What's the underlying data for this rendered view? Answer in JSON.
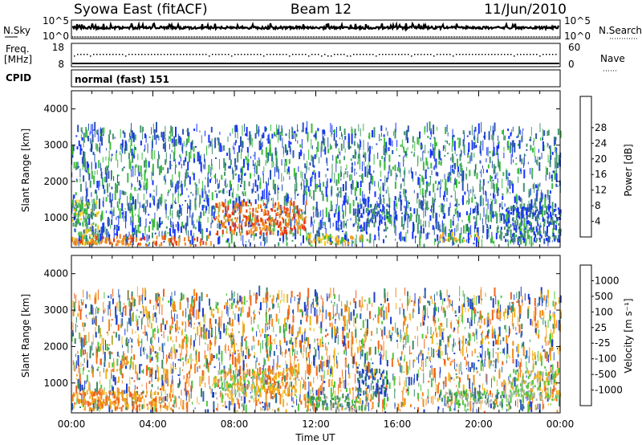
{
  "header": {
    "station": "Syowa East (fitACF)",
    "beam": "Beam 12",
    "date": "11/Jun/2010"
  },
  "noise_panel": {
    "left_label": "N.Sky",
    "right_label": "N.Search",
    "left_ticks": [
      "10^5",
      "10^0"
    ],
    "right_ticks": [
      "10^5",
      "10^0"
    ]
  },
  "freq_panel": {
    "left_label_line1": "Freq.",
    "left_label_line2": "[MHz]",
    "right_label": "Nave",
    "left_ticks": [
      "18",
      "8"
    ],
    "right_ticks": [
      "60",
      "0"
    ]
  },
  "cpid": {
    "label": "CPID",
    "value": "normal (fast) 151"
  },
  "x_axis": {
    "label": "Time UT",
    "ticks": [
      "00:00",
      "04:00",
      "08:00",
      "12:00",
      "16:00",
      "20:00",
      "00:00"
    ]
  },
  "chart_data": [
    {
      "type": "heatmap",
      "quantity": "Power",
      "ylabel": "Slant Range [km]",
      "yticks": [
        1000,
        2000,
        3000,
        4000
      ],
      "ylim": [
        180,
        4500
      ],
      "xlim_hours": [
        0,
        24
      ],
      "colorbar_label": "Power [dB]",
      "colorbar_ticks": [
        "4",
        "8",
        "12",
        "16",
        "20",
        "24",
        "28"
      ],
      "colorbar_colors": [
        "#1432ff",
        "#2d55b4",
        "#46966e",
        "#3cbe3c",
        "#f0c81e",
        "#f0a028",
        "#f07820",
        "#e63214",
        "#e60000"
      ],
      "echo_regions": [
        {
          "t": [
            0.0,
            1.3
          ],
          "r": [
            200,
            1400
          ],
          "level": "mixed"
        },
        {
          "t": [
            0.0,
            7.0
          ],
          "r": [
            200,
            420
          ],
          "level": "high"
        },
        {
          "t": [
            7.0,
            11.5
          ],
          "r": [
            500,
            1350
          ],
          "level": "high"
        },
        {
          "t": [
            11.5,
            14.5
          ],
          "r": [
            200,
            450
          ],
          "level": "medium"
        },
        {
          "t": [
            14.0,
            15.5
          ],
          "r": [
            600,
            1300
          ],
          "level": "low"
        },
        {
          "t": [
            18.0,
            20.0
          ],
          "r": [
            300,
            500
          ],
          "level": "medium"
        },
        {
          "t": [
            21.0,
            24.0
          ],
          "r": [
            300,
            1300
          ],
          "level": "low"
        }
      ]
    },
    {
      "type": "heatmap",
      "quantity": "Velocity",
      "ylabel": "Slant Range [km]",
      "yticks": [
        1000,
        2000,
        3000,
        4000
      ],
      "ylim": [
        180,
        4500
      ],
      "xlim_hours": [
        0,
        24
      ],
      "colorbar_label": "Velocity [m s⁻¹]",
      "colorbar_ticks": [
        "1000",
        "500",
        "100",
        "25",
        "-25",
        "-100",
        "-500",
        "-1000"
      ],
      "colorbar_colors": [
        "#1e3cc8",
        "#2d64b4",
        "#3c8c64",
        "#50c83c",
        "#b4b4b4",
        "#f0b41e",
        "#f08c1e",
        "#f0641e",
        "#e61414"
      ],
      "echo_regions": [
        {
          "t": [
            0.0,
            5.0
          ],
          "r": [
            200,
            700
          ],
          "level": "negative"
        },
        {
          "t": [
            7.0,
            9.5
          ],
          "r": [
            500,
            1300
          ],
          "level": "near-zero"
        },
        {
          "t": [
            9.5,
            11.0
          ],
          "r": [
            600,
            1450
          ],
          "level": "negative"
        },
        {
          "t": [
            11.5,
            14.5
          ],
          "r": [
            200,
            600
          ],
          "level": "positive"
        },
        {
          "t": [
            14.0,
            15.5
          ],
          "r": [
            600,
            1300
          ],
          "level": "strong-positive"
        },
        {
          "t": [
            18.0,
            21.5
          ],
          "r": [
            300,
            700
          ],
          "level": "positive"
        },
        {
          "t": [
            21.5,
            24.0
          ],
          "r": [
            500,
            1300
          ],
          "level": "near-zero"
        }
      ]
    }
  ]
}
